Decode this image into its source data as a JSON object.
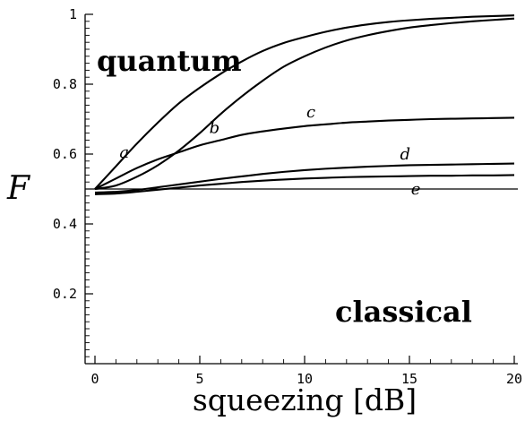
{
  "chart_data": {
    "type": "line",
    "title": "",
    "xlabel": "squeezing [dB]",
    "ylabel": "F",
    "xlim": [
      0,
      20
    ],
    "ylim": [
      0,
      1
    ],
    "x_ticks": [
      0,
      5,
      10,
      15,
      20
    ],
    "x_tick_labels": [
      "0",
      "5",
      "10",
      "15",
      "20"
    ],
    "y_ticks": [
      0.2,
      0.4,
      0.6,
      0.8,
      1
    ],
    "y_tick_labels": [
      "0.2",
      "0.4",
      "0.6",
      "0.8",
      "1"
    ],
    "grid": false,
    "annotations": [
      {
        "text": "quantum",
        "x": 3.7,
        "y": 0.87
      },
      {
        "text": "classical",
        "x": 18.0,
        "y": 0.15
      }
    ],
    "reference_line": {
      "y": 0.5
    },
    "series": [
      {
        "name": "a",
        "label_at": [
          1.4,
          0.59
        ],
        "x": [
          0,
          1,
          2,
          3,
          4,
          5,
          6,
          7,
          8,
          9,
          10,
          11,
          12,
          13,
          14,
          15,
          16,
          17,
          18,
          19,
          20
        ],
        "y": [
          0.5,
          0.565,
          0.63,
          0.69,
          0.745,
          0.79,
          0.83,
          0.865,
          0.895,
          0.918,
          0.935,
          0.95,
          0.962,
          0.971,
          0.978,
          0.983,
          0.987,
          0.99,
          0.993,
          0.995,
          0.997
        ]
      },
      {
        "name": "b",
        "label_at": [
          5.7,
          0.66
        ],
        "x": [
          0,
          1,
          2,
          3,
          4,
          5,
          6,
          7,
          8,
          9,
          10,
          11,
          12,
          13,
          14,
          15,
          16,
          17,
          18,
          19,
          20
        ],
        "y": [
          0.5,
          0.51,
          0.535,
          0.568,
          0.61,
          0.66,
          0.715,
          0.765,
          0.81,
          0.85,
          0.88,
          0.905,
          0.925,
          0.94,
          0.952,
          0.962,
          0.969,
          0.975,
          0.98,
          0.984,
          0.988
        ]
      },
      {
        "name": "c",
        "label_at": [
          10.3,
          0.705
        ],
        "x": [
          0,
          1,
          2,
          3,
          4,
          5,
          6,
          7,
          8,
          9,
          10,
          11,
          12,
          13,
          14,
          15,
          16,
          17,
          18,
          19,
          20
        ],
        "y": [
          0.5,
          0.53,
          0.56,
          0.585,
          0.605,
          0.625,
          0.64,
          0.655,
          0.665,
          0.673,
          0.68,
          0.685,
          0.69,
          0.693,
          0.696,
          0.698,
          0.7,
          0.701,
          0.702,
          0.703,
          0.704
        ]
      },
      {
        "name": "d",
        "label_at": [
          14.8,
          0.585
        ],
        "x": [
          0,
          1,
          2,
          3,
          4,
          5,
          6,
          7,
          8,
          9,
          10,
          11,
          12,
          13,
          14,
          15,
          16,
          17,
          18,
          19,
          20
        ],
        "y": [
          0.49,
          0.492,
          0.497,
          0.505,
          0.513,
          0.521,
          0.529,
          0.536,
          0.543,
          0.549,
          0.554,
          0.558,
          0.561,
          0.564,
          0.566,
          0.568,
          0.569,
          0.57,
          0.571,
          0.572,
          0.573
        ]
      },
      {
        "name": "e",
        "label_at": [
          15.3,
          0.485
        ],
        "x": [
          0,
          1,
          2,
          3,
          4,
          5,
          6,
          7,
          8,
          9,
          10,
          11,
          12,
          13,
          14,
          15,
          16,
          17,
          18,
          19,
          20
        ],
        "y": [
          0.485,
          0.487,
          0.492,
          0.498,
          0.504,
          0.51,
          0.515,
          0.52,
          0.524,
          0.527,
          0.53,
          0.532,
          0.534,
          0.535,
          0.536,
          0.537,
          0.538,
          0.538,
          0.539,
          0.539,
          0.54
        ]
      }
    ]
  }
}
